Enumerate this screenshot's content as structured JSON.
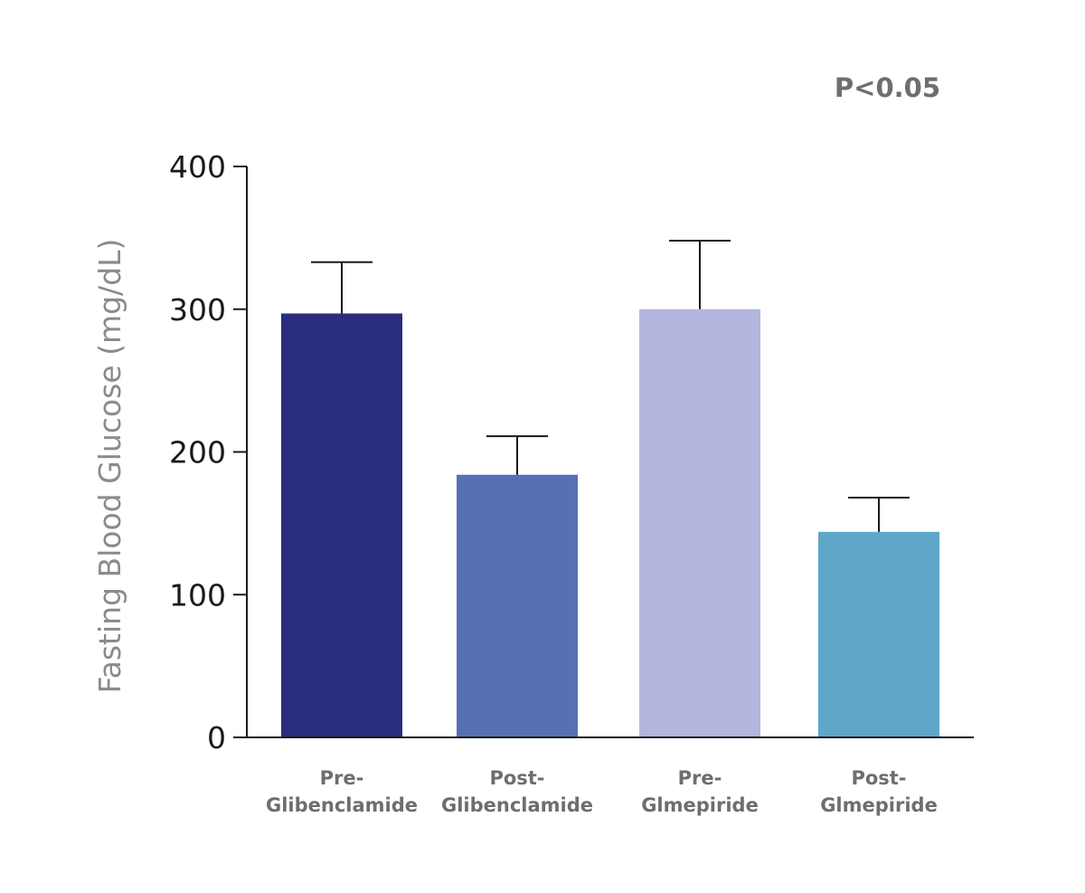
{
  "chart_data": {
    "type": "bar",
    "title": "",
    "annotation": "P<0.05",
    "xlabel": "",
    "ylabel": "Fasting Blood Glucose (mg/dL)",
    "ylim": [
      0,
      400
    ],
    "yticks": [
      "0",
      "100",
      "200",
      "300",
      "400"
    ],
    "grid": false,
    "categories": [
      [
        "Pre-",
        "Glibenclamide"
      ],
      [
        "Post-",
        "Glibenclamide"
      ],
      [
        "Pre-",
        "Glmepiride"
      ],
      [
        "Post-",
        "Glmepiride"
      ]
    ],
    "values": [
      297,
      184,
      300,
      144
    ],
    "error_upper": [
      333,
      211,
      348,
      168
    ],
    "colors": [
      "#2a2d7b",
      "#5571b4",
      "#b3b6dc",
      "#5fa7c9"
    ]
  }
}
